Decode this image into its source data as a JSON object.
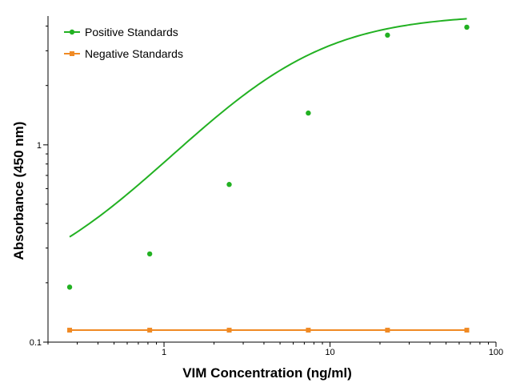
{
  "chart_data": {
    "type": "scatter",
    "xlabel": "VIM Concentration (ng/ml)",
    "ylabel": "Absorbance (450 nm)",
    "xscale": "log",
    "yscale": "log",
    "xlim": [
      0.2,
      100
    ],
    "ylim": [
      0.1,
      4.5
    ],
    "x_ticks": [
      {
        "value": 1,
        "label": "1"
      },
      {
        "value": 10,
        "label": "10"
      },
      {
        "value": 100,
        "label": "100"
      }
    ],
    "y_ticks": [
      {
        "value": 0.1,
        "label": "0.1"
      },
      {
        "value": 1,
        "label": "1"
      }
    ],
    "legend_position": "top-left",
    "grid": false,
    "series": [
      {
        "name": "Positive Standards",
        "color": "#22b122",
        "marker": "circle",
        "fit": "four-parameter logistic curve",
        "x": [
          0.27,
          0.82,
          2.47,
          7.4,
          22.2,
          66.7
        ],
        "y": [
          0.19,
          0.28,
          0.63,
          1.45,
          3.6,
          3.95
        ]
      },
      {
        "name": "Negative Standards",
        "color": "#f08a24",
        "marker": "square",
        "fit": "connected line",
        "x": [
          0.27,
          0.82,
          2.47,
          7.4,
          22.2,
          66.7
        ],
        "y": [
          0.115,
          0.115,
          0.115,
          0.115,
          0.115,
          0.115
        ]
      }
    ]
  }
}
